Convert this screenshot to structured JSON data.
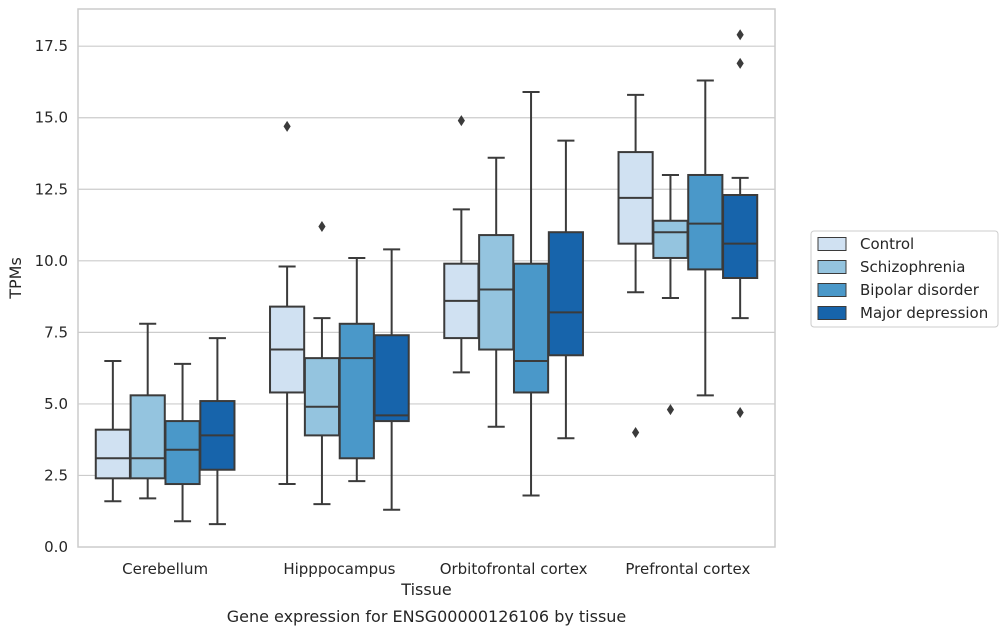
{
  "chart_data": {
    "type": "boxplot",
    "title": "",
    "caption": "Gene expression for ENSG00000126106 by tissue",
    "xlabel": "Tissue",
    "ylabel": "TPMs",
    "ylim": [
      0,
      18.8
    ],
    "yticks": [
      "0.0",
      "2.5",
      "5.0",
      "7.5",
      "10.0",
      "12.5",
      "15.0",
      "17.5"
    ],
    "ytick_values": [
      0,
      2.5,
      5,
      7.5,
      10,
      12.5,
      15,
      17.5
    ],
    "grid": "horizontal",
    "legend_position": "right",
    "categories": [
      "Cerebellum",
      "Hipppocampus",
      "Orbitofrontal cortex",
      "Prefrontal cortex"
    ],
    "series": [
      {
        "name": "Control",
        "color": "#d0e1f2",
        "boxes": [
          {
            "whislo": 1.6,
            "q1": 2.4,
            "med": 3.1,
            "q3": 4.1,
            "whishi": 6.5,
            "fliers": []
          },
          {
            "whislo": 2.2,
            "q1": 5.4,
            "med": 6.9,
            "q3": 8.4,
            "whishi": 9.8,
            "fliers": [
              14.7
            ]
          },
          {
            "whislo": 6.1,
            "q1": 7.3,
            "med": 8.6,
            "q3": 9.9,
            "whishi": 11.8,
            "fliers": [
              14.9
            ]
          },
          {
            "whislo": 8.9,
            "q1": 10.6,
            "med": 12.2,
            "q3": 13.8,
            "whishi": 15.8,
            "fliers": [
              4.0
            ]
          }
        ]
      },
      {
        "name": "Schizophrenia",
        "color": "#94c4df",
        "boxes": [
          {
            "whislo": 1.7,
            "q1": 2.4,
            "med": 3.1,
            "q3": 5.3,
            "whishi": 7.8,
            "fliers": []
          },
          {
            "whislo": 1.5,
            "q1": 3.9,
            "med": 4.9,
            "q3": 6.6,
            "whishi": 8.0,
            "fliers": [
              11.2
            ]
          },
          {
            "whislo": 4.2,
            "q1": 6.9,
            "med": 9.0,
            "q3": 10.9,
            "whishi": 13.6,
            "fliers": []
          },
          {
            "whislo": 8.7,
            "q1": 10.1,
            "med": 11.0,
            "q3": 11.4,
            "whishi": 13.0,
            "fliers": [
              4.8
            ]
          }
        ]
      },
      {
        "name": "Bipolar disorder",
        "color": "#4a98c9",
        "boxes": [
          {
            "whislo": 0.9,
            "q1": 2.2,
            "med": 3.4,
            "q3": 4.4,
            "whishi": 6.4,
            "fliers": []
          },
          {
            "whislo": 2.3,
            "q1": 3.1,
            "med": 6.6,
            "q3": 7.8,
            "whishi": 10.1,
            "fliers": []
          },
          {
            "whislo": 1.8,
            "q1": 5.4,
            "med": 6.5,
            "q3": 9.9,
            "whishi": 15.9,
            "fliers": []
          },
          {
            "whislo": 5.3,
            "q1": 9.7,
            "med": 11.3,
            "q3": 13.0,
            "whishi": 16.3,
            "fliers": []
          }
        ]
      },
      {
        "name": "Major depression",
        "color": "#1764ab",
        "boxes": [
          {
            "whislo": 0.8,
            "q1": 2.7,
            "med": 3.9,
            "q3": 5.1,
            "whishi": 7.3,
            "fliers": []
          },
          {
            "whislo": 1.3,
            "q1": 4.4,
            "med": 4.6,
            "q3": 7.4,
            "whishi": 10.4,
            "fliers": []
          },
          {
            "whislo": 3.8,
            "q1": 6.7,
            "med": 8.2,
            "q3": 11.0,
            "whishi": 14.2,
            "fliers": []
          },
          {
            "whislo": 8.0,
            "q1": 9.4,
            "med": 10.6,
            "q3": 12.3,
            "whishi": 12.9,
            "fliers": [
              4.7,
              16.9,
              17.9
            ]
          }
        ]
      }
    ]
  }
}
